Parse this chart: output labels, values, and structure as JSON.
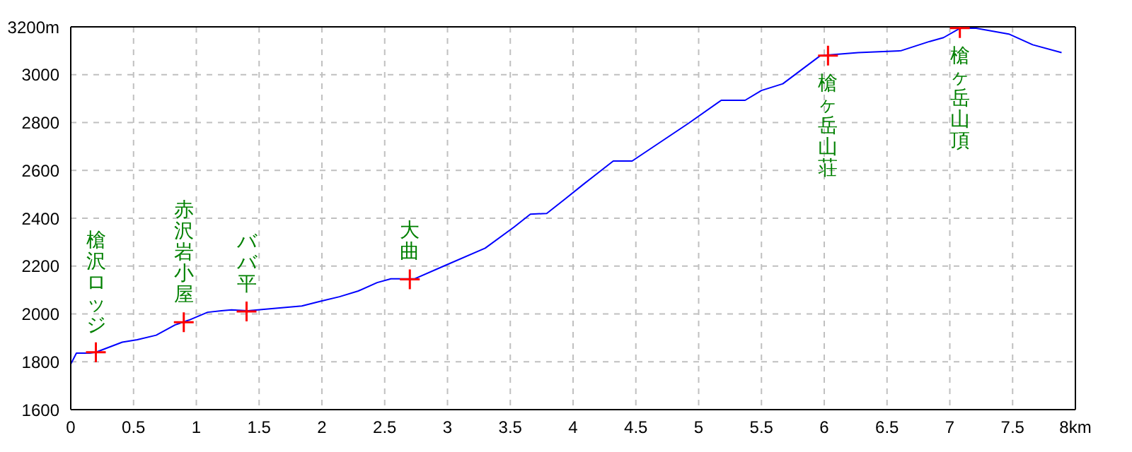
{
  "chart_data": {
    "type": "line",
    "xlim": [
      0,
      8
    ],
    "ylim": [
      1600,
      3200
    ],
    "xticks": [
      0,
      0.5,
      1,
      1.5,
      2,
      2.5,
      3,
      3.5,
      4,
      4.5,
      5,
      5.5,
      6,
      6.5,
      7,
      7.5,
      {
        "value": 8,
        "label": "8km"
      }
    ],
    "yticks": [
      1600,
      1800,
      2000,
      2200,
      2400,
      2600,
      2800,
      3000,
      {
        "value": 3200,
        "label": "3200m"
      }
    ],
    "grid": true,
    "legend": false,
    "marker": "none",
    "line_style": "solid",
    "series": [
      {
        "color": "#0000ff",
        "x": [
          0,
          0.045,
          0.15,
          0.2,
          0.41,
          0.53,
          0.68,
          0.83,
          0.94,
          1.09,
          1.2,
          1.28,
          1.41,
          1.84,
          1.99,
          2.14,
          2.29,
          2.44,
          2.55,
          2.74,
          2.97,
          3.3,
          3.53,
          3.66,
          3.79,
          3.94,
          4.09,
          4.32,
          4.47,
          4.92,
          5.18,
          5.37,
          5.5,
          5.67,
          5.97,
          6.27,
          6.61,
          6.84,
          6.95,
          7.08,
          7.21,
          7.47,
          7.66,
          7.89
        ],
        "values": [
          1790,
          1836,
          1836,
          1840,
          1882,
          1892,
          1911,
          1954,
          1974,
          2007,
          2013,
          2017,
          2013,
          2033,
          2053,
          2072,
          2096,
          2131,
          2147,
          2147,
          2200,
          2275,
          2363,
          2417,
          2420,
          2482,
          2545,
          2639,
          2639,
          2797,
          2893,
          2893,
          2934,
          2962,
          3080,
          3092,
          3100,
          3139,
          3155,
          3194,
          3194,
          3170,
          3125,
          3092
        ]
      },
      {
        "type": "scatter",
        "color": "#ff0000",
        "marker": "cross",
        "x": [
          0.2,
          0.9,
          1.4,
          2.7,
          6.03,
          7.08
        ],
        "values": [
          1840,
          1965,
          2010,
          2145,
          3080,
          3195
        ]
      }
    ],
    "annotations": [
      {
        "text": "槍沢ロッジ",
        "x": 0.2,
        "y": 1840
      },
      {
        "text": "赤沢岩小屋",
        "x": 0.9,
        "y": 1965
      },
      {
        "text": "ババ平",
        "x": 1.4,
        "y": 2010
      },
      {
        "text": "大曲",
        "x": 2.7,
        "y": 2145
      },
      {
        "text": "槍ヶ岳山荘",
        "x": 6.03,
        "y": 3080
      },
      {
        "text": "槍ヶ岳山頂",
        "x": 7.08,
        "y": 3195
      }
    ]
  }
}
